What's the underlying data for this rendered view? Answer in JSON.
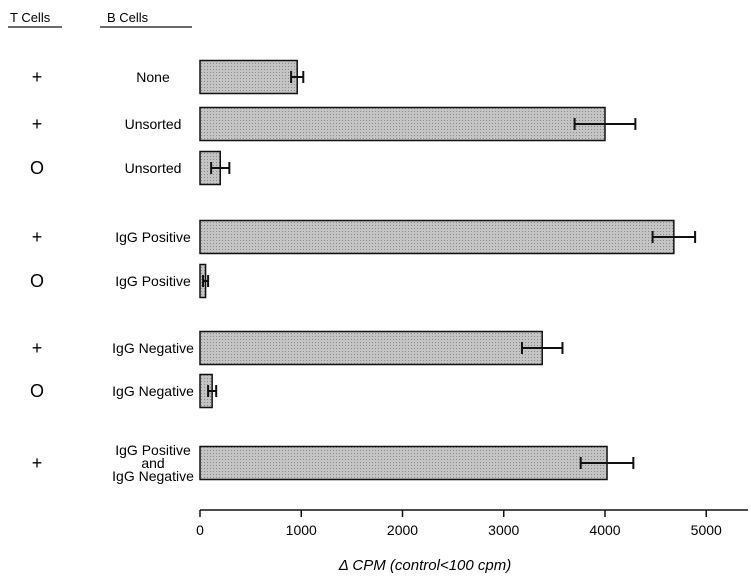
{
  "chart_data": {
    "type": "bar",
    "orientation": "horizontal",
    "column_headers": {
      "t_cells": "T Cells",
      "b_cells": "B Cells"
    },
    "rows": [
      {
        "t_cells": "+",
        "b_cells": [
          "None"
        ],
        "value": 960,
        "error": 60
      },
      {
        "t_cells": "+",
        "b_cells": [
          "Unsorted"
        ],
        "value": 4000,
        "error": 300
      },
      {
        "t_cells": "O",
        "b_cells": [
          "Unsorted"
        ],
        "value": 200,
        "error": 90
      },
      {
        "t_cells": "+",
        "b_cells": [
          "IgG Positive"
        ],
        "value": 4680,
        "error": 210
      },
      {
        "t_cells": "O",
        "b_cells": [
          "IgG Positive"
        ],
        "value": 55,
        "error": 25
      },
      {
        "t_cells": "+",
        "b_cells": [
          "IgG Negative"
        ],
        "value": 3380,
        "error": 200
      },
      {
        "t_cells": "O",
        "b_cells": [
          "IgG Negative"
        ],
        "value": 120,
        "error": 40
      },
      {
        "t_cells": "+",
        "b_cells": [
          "IgG Positive",
          "and",
          "IgG Negative"
        ],
        "value": 4020,
        "error": 260
      }
    ],
    "x_ticks": [
      "0",
      "1000",
      "2000",
      "3000",
      "4000",
      "5000"
    ],
    "xlabel": "Δ CPM (control<100 cpm)",
    "xlim": [
      0,
      5500
    ],
    "grid": false,
    "bar_fill": "#c4c4c4",
    "bar_stroke": "#111111"
  }
}
